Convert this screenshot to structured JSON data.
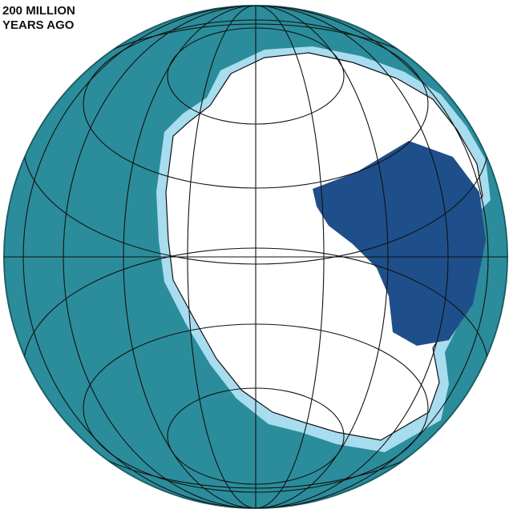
{
  "title": {
    "line1": "200 MILLION",
    "line2": "YEARS AGO"
  }
}
